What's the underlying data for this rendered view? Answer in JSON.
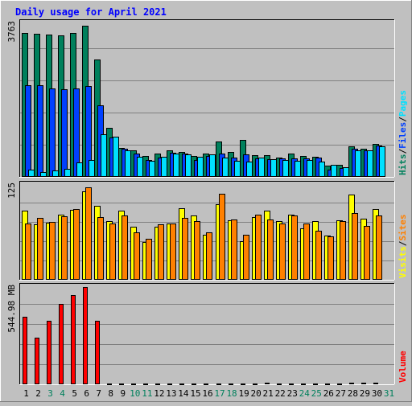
{
  "chart_data": {
    "type": "bar",
    "title": "Daily usage for April 2021",
    "categories": [
      "1",
      "2",
      "3",
      "4",
      "5",
      "6",
      "7",
      "8",
      "9",
      "10",
      "11",
      "12",
      "13",
      "14",
      "15",
      "16",
      "17",
      "18",
      "19",
      "20",
      "21",
      "22",
      "23",
      "24",
      "25",
      "26",
      "27",
      "28",
      "29",
      "30",
      "31"
    ],
    "weekend_categories": [
      "3",
      "4",
      "10",
      "11",
      "17",
      "18",
      "24",
      "25",
      "31"
    ],
    "colors": {
      "title": "#0000ff",
      "hits": "#00805c",
      "files": "#0040ff",
      "pages": "#00e0ff",
      "visits": "#ffff00",
      "sites": "#ff8000",
      "kbytes_in": "#ff0000",
      "kbytes_out": "#ff0000",
      "weekday_label": "#000000",
      "weekend_label": "#00805c",
      "background": "#c0c0c0"
    },
    "panels": [
      {
        "id": "hits",
        "axis_max_label": "3763",
        "ymax": 3763,
        "side_legend": [
          {
            "text": "Hits",
            "color": "#00805c"
          },
          {
            "text": "/",
            "color": "#000000"
          },
          {
            "text": "Files",
            "color": "#0040ff"
          },
          {
            "text": "/",
            "color": "#000000"
          },
          {
            "text": "Pages",
            "color": "#00e0ff"
          }
        ],
        "series": [
          {
            "name": "Hits",
            "color": "#00805c",
            "values": [
              3550,
              3530,
              3500,
              3480,
              3550,
              3730,
              2900,
              1200,
              720,
              650,
              510,
              580,
              660,
              620,
              520,
              580,
              880,
              620,
              910,
              540,
              540,
              480,
              570,
              520,
              490,
              280,
              300,
              760,
              700,
              820
            ]
          },
          {
            "name": "Files",
            "color": "#0040ff",
            "values": [
              2250,
              2260,
              2180,
              2150,
              2170,
              2230,
              1760,
              970,
              690,
              580,
              420,
              480,
              600,
              570,
              420,
              520,
              580,
              470,
              560,
              460,
              430,
              450,
              460,
              450,
              470,
              180,
              220,
              690,
              650,
              780
            ]
          },
          {
            "name": "Pages",
            "color": "#00e0ff",
            "values": [
              180,
              120,
              160,
              190,
              350,
              410,
              1040,
              1000,
              660,
              500,
              400,
              500,
              580,
              560,
              500,
              550,
              480,
              390,
              380,
              480,
              430,
              420,
              390,
              420,
              370,
              290,
              240,
              660,
              650,
              750
            ]
          }
        ]
      },
      {
        "id": "visits",
        "axis_max_label": "125",
        "ymax": 125,
        "side_legend": [
          {
            "text": "Visits",
            "color": "#ffff00"
          },
          {
            "text": "/",
            "color": "#000000"
          },
          {
            "text": "Sites",
            "color": "#ff8000"
          }
        ],
        "series": [
          {
            "name": "Visits",
            "color": "#ffff00",
            "values": [
              92,
              74,
              76,
              87,
              93,
              118,
              98,
              78,
              92,
              70,
              50,
              70,
              75,
              95,
              86,
              60,
              100,
              79,
              51,
              83,
              92,
              78,
              87,
              68,
              78,
              59,
              79,
              113,
              81,
              94
            ]
          },
          {
            "name": "Sites",
            "color": "#ff8000",
            "values": [
              75,
              82,
              77,
              84,
              94,
              123,
              83,
              75,
              85,
              63,
              55,
              74,
              75,
              82,
              78,
              63,
              114,
              80,
              60,
              87,
              80,
              75,
              85,
              75,
              65,
              58,
              78,
              89,
              72,
              85
            ]
          }
        ]
      },
      {
        "id": "volume",
        "axis_max_label": "544.98 MB",
        "ymax": 544.98,
        "side_legend": [
          {
            "text": "Volume",
            "color": "#ff0000"
          }
        ],
        "series": [
          {
            "name": "Volume",
            "color": "#ff0000",
            "values": [
              382,
              262,
              358,
              455,
              504,
              550,
              358,
              6,
              3,
              3,
              3,
              3,
              3,
              3,
              3,
              3,
              3,
              3,
              3,
              3,
              8,
              3,
              3,
              3,
              3,
              3,
              3,
              8,
              8,
              8
            ]
          }
        ]
      }
    ]
  }
}
